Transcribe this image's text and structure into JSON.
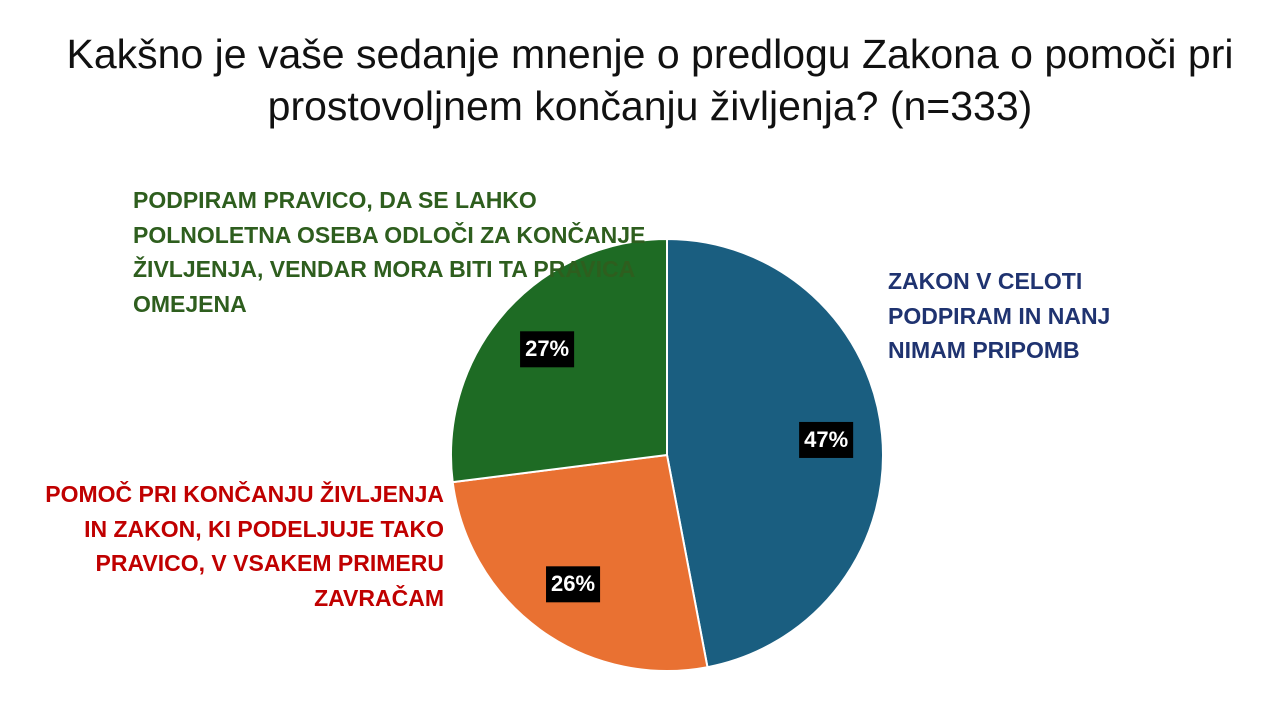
{
  "chart_data": {
    "type": "pie",
    "title": "Kakšno je vaše sedanje mnenje o predlogu Zakona o pomoči pri prostovoljnem končanju življenja? (n=333)",
    "categories": [
      "ZAKON V CELOTI PODPIRAM IN NANJ NIMAM PRIPOMB",
      "POMOČ PRI KONČANJU ŽIVLJENJA IN ZAKON, KI PODELJUJE TAKO PRAVICO, V VSAKEM PRIMERU ZAVRAČAM",
      "PODPIRAM PRAVICO, DA SE LAHKO POLNOLETNA OSEBA ODLOČI ZA KONČANJE ŽIVLJENJA, VENDAR MORA BITI TA PRAVICA OMEJENA"
    ],
    "values": [
      47,
      26,
      27
    ],
    "value_labels": [
      "47%",
      "26%",
      "27%"
    ],
    "colors": [
      "#1a5e80",
      "#e97132",
      "#1e6b24"
    ],
    "label_colors": [
      "#1f3370",
      "#c00000",
      "#2e5e1e"
    ]
  }
}
